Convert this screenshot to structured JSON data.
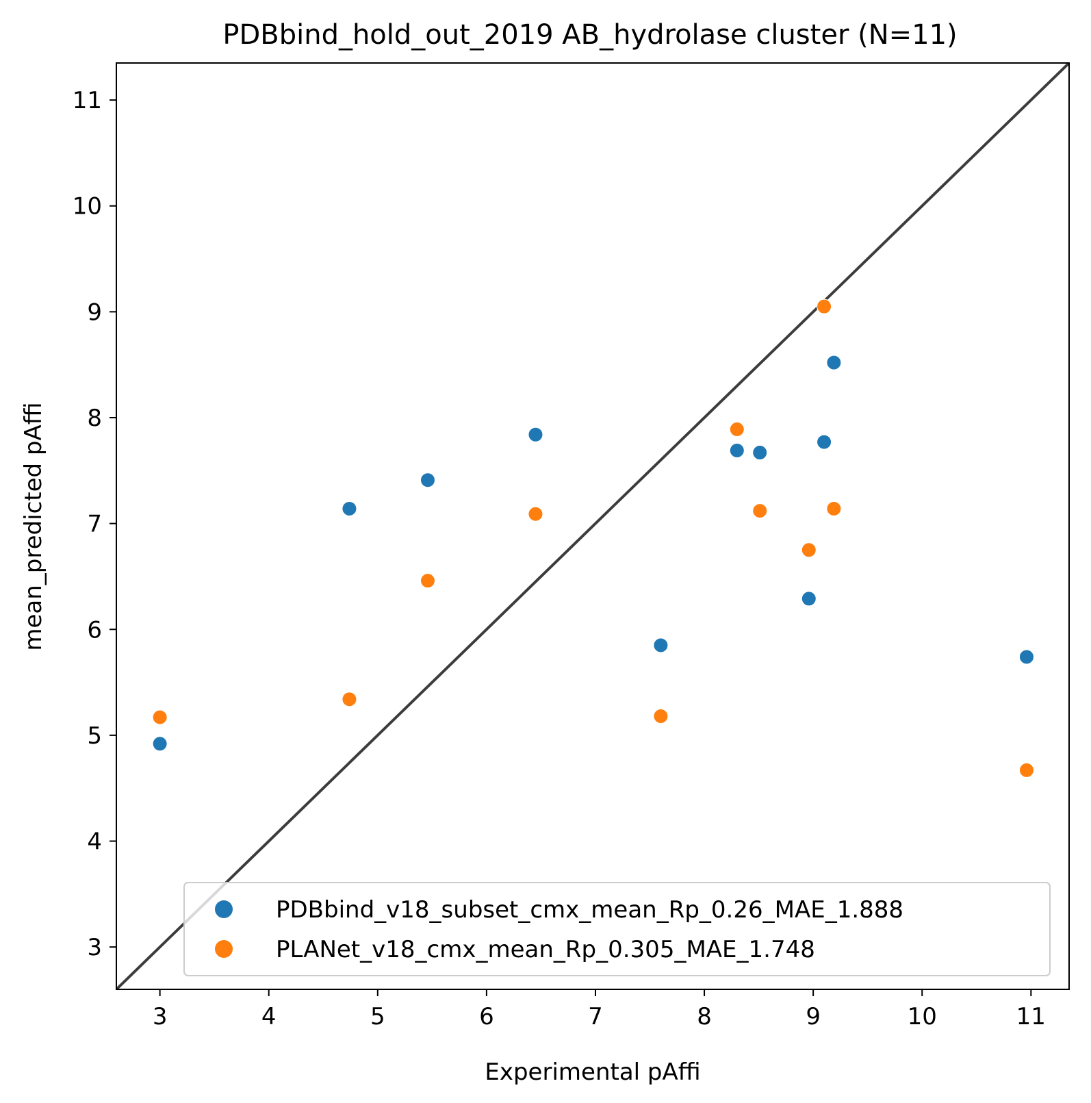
{
  "chart_data": {
    "type": "scatter",
    "title": "PDBbind_hold_out_2019 AB_hydrolase cluster (N=11)",
    "xlabel": "Experimental pAffi",
    "ylabel": "mean_predicted pAffi",
    "xlim": [
      2.6,
      11.35
    ],
    "ylim": [
      2.6,
      11.35
    ],
    "xticks": [
      3,
      4,
      5,
      6,
      7,
      8,
      9,
      10,
      11
    ],
    "yticks": [
      3,
      4,
      5,
      6,
      7,
      8,
      9,
      10,
      11
    ],
    "grid": false,
    "legend_position": "lower-right",
    "identity_line": {
      "from": [
        2.6,
        2.6
      ],
      "to": [
        11.35,
        11.35
      ],
      "color": "#3c3c3c"
    },
    "series": [
      {
        "name": "PDBbind_v18_subset_cmx_mean_Rp_0.26_MAE_1.888",
        "color": "#1f77b4",
        "points": [
          [
            3.0,
            4.92
          ],
          [
            4.74,
            7.14
          ],
          [
            5.46,
            7.41
          ],
          [
            6.45,
            7.84
          ],
          [
            7.6,
            5.85
          ],
          [
            8.3,
            7.69
          ],
          [
            8.51,
            7.67
          ],
          [
            8.96,
            6.29
          ],
          [
            9.1,
            7.77
          ],
          [
            9.19,
            8.52
          ],
          [
            10.96,
            5.74
          ]
        ]
      },
      {
        "name": "PLANet_v18_cmx_mean_Rp_0.305_MAE_1.748",
        "color": "#ff7f0e",
        "points": [
          [
            3.0,
            5.17
          ],
          [
            4.74,
            5.34
          ],
          [
            5.46,
            6.46
          ],
          [
            6.45,
            7.09
          ],
          [
            7.6,
            5.18
          ],
          [
            8.3,
            7.89
          ],
          [
            8.51,
            7.12
          ],
          [
            8.96,
            6.75
          ],
          [
            9.1,
            9.05
          ],
          [
            9.19,
            7.14
          ],
          [
            10.96,
            4.67
          ]
        ]
      }
    ]
  }
}
